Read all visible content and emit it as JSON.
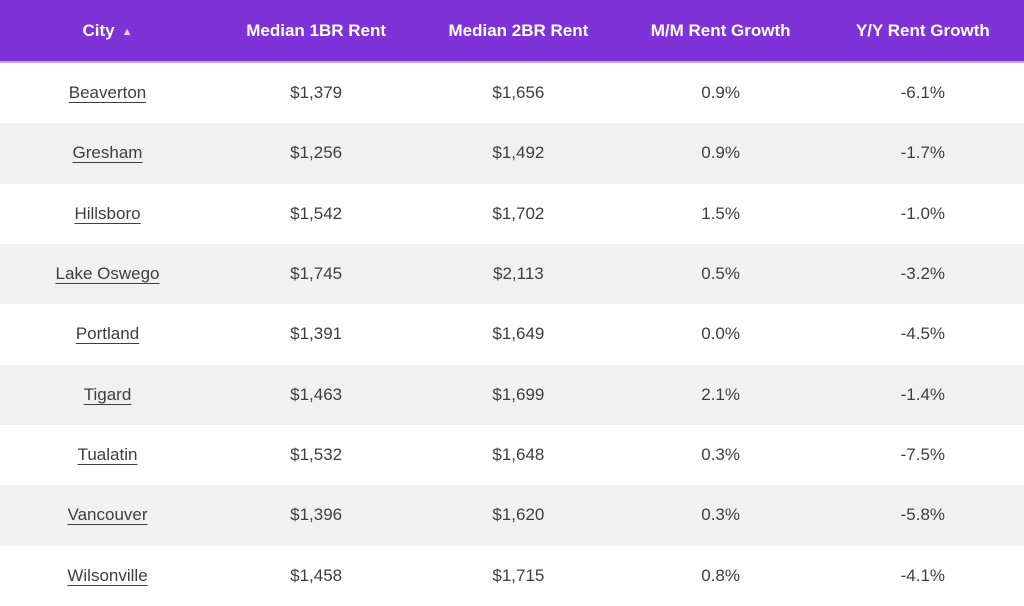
{
  "table": {
    "columns": [
      {
        "label": "City",
        "sorted": "ascending"
      },
      {
        "label": "Median 1BR Rent"
      },
      {
        "label": "Median 2BR Rent"
      },
      {
        "label": "M/M Rent Growth"
      },
      {
        "label": "Y/Y Rent Growth"
      }
    ],
    "sort_icon": "▲",
    "rows": [
      {
        "city": "Beaverton",
        "rent_1br": "$1,379",
        "rent_2br": "$1,656",
        "mm_growth": "0.9%",
        "yy_growth": "-6.1%"
      },
      {
        "city": "Gresham",
        "rent_1br": "$1,256",
        "rent_2br": "$1,492",
        "mm_growth": "0.9%",
        "yy_growth": "-1.7%"
      },
      {
        "city": "Hillsboro",
        "rent_1br": "$1,542",
        "rent_2br": "$1,702",
        "mm_growth": "1.5%",
        "yy_growth": "-1.0%"
      },
      {
        "city": "Lake Oswego",
        "rent_1br": "$1,745",
        "rent_2br": "$2,113",
        "mm_growth": "0.5%",
        "yy_growth": "-3.2%"
      },
      {
        "city": "Portland",
        "rent_1br": "$1,391",
        "rent_2br": "$1,649",
        "mm_growth": "0.0%",
        "yy_growth": "-4.5%"
      },
      {
        "city": "Tigard",
        "rent_1br": "$1,463",
        "rent_2br": "$1,699",
        "mm_growth": "2.1%",
        "yy_growth": "-1.4%"
      },
      {
        "city": "Tualatin",
        "rent_1br": "$1,532",
        "rent_2br": "$1,648",
        "mm_growth": "0.3%",
        "yy_growth": "-7.5%"
      },
      {
        "city": "Vancouver",
        "rent_1br": "$1,396",
        "rent_2br": "$1,620",
        "mm_growth": "0.3%",
        "yy_growth": "-5.8%"
      },
      {
        "city": "Wilsonville",
        "rent_1br": "$1,458",
        "rent_2br": "$1,715",
        "mm_growth": "0.8%",
        "yy_growth": "-4.1%"
      }
    ]
  },
  "colors": {
    "header_background": "#7E32D8",
    "header_text": "#FFFFFF",
    "header_border_bottom": "#C5A9EC",
    "row_background": "#FFFFFF",
    "row_alt_background": "#F1F1F1",
    "cell_text": "#3E3E3E"
  }
}
